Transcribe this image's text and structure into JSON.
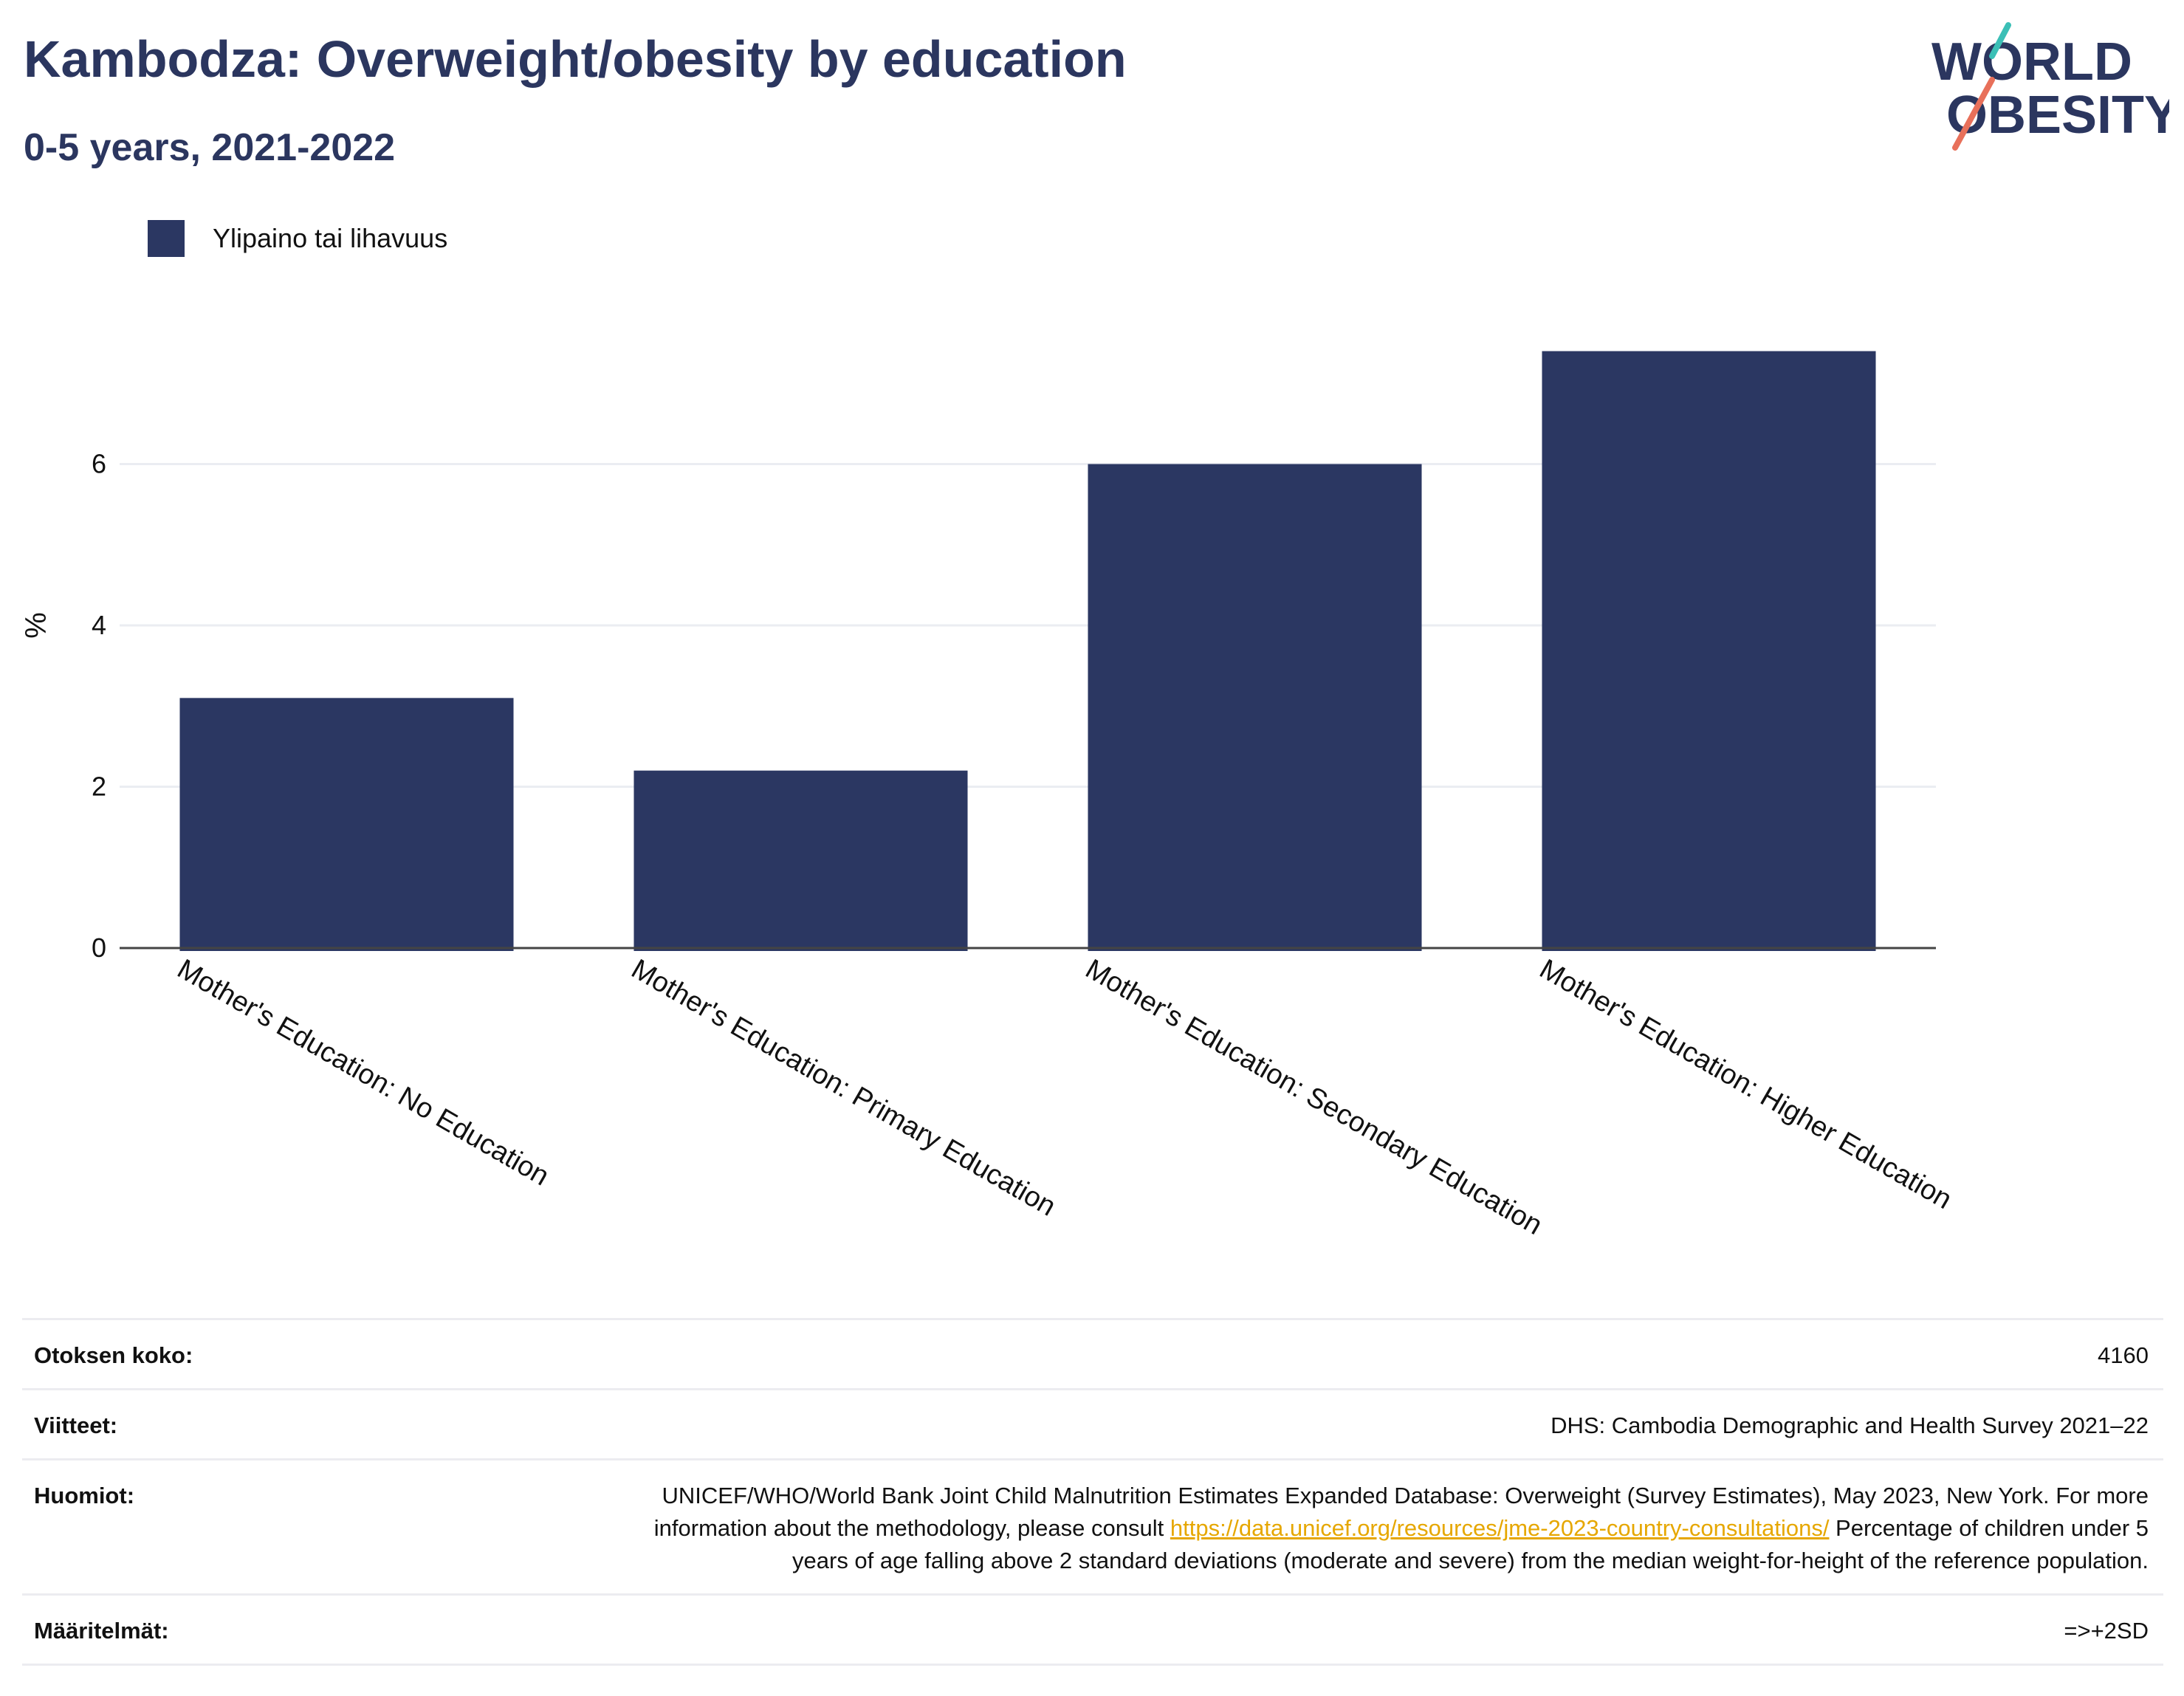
{
  "header": {
    "title": "Kambodza: Overweight/obesity by education",
    "subtitle": "0-5 years, 2021-2022"
  },
  "logo": {
    "line1": "WORLD",
    "line2": "OBESITY",
    "accent_teal": "#3bbfb6",
    "accent_coral": "#e8705a",
    "text_color": "#2b365f"
  },
  "legend": {
    "label": "Ylipaino tai lihavuus",
    "color": "#2b3762"
  },
  "chart_data": {
    "type": "bar",
    "categories": [
      "Mother's Education: No Education",
      "Mother's Education: Primary Education",
      "Mother's Education: Secondary Education",
      "Mother's Education: Higher Education"
    ],
    "series": [
      {
        "name": "Ylipaino tai lihavuus",
        "values": [
          3.1,
          2.2,
          6.0,
          7.4
        ],
        "color": "#2b3762"
      }
    ],
    "ylabel": "%",
    "xlabel": "",
    "ylim": [
      0,
      8
    ],
    "yticks": [
      0,
      2,
      4,
      6
    ],
    "grid": true,
    "legend_position": "top-left"
  },
  "meta": [
    {
      "label": "Otoksen koko:",
      "value": "4160"
    },
    {
      "label": "Viitteet:",
      "value": "DHS: Cambodia Demographic and Health Survey 2021–22"
    },
    {
      "label": "Huomiot:",
      "value_before": "UNICEF/WHO/World Bank Joint Child Malnutrition Estimates Expanded Database: Overweight (Survey Estimates), May 2023, New York. For more information about the methodology, please consult ",
      "link": "https://data.unicef.org/resources/jme-2023-country-consultations/",
      "value_after": " Percentage of children under 5 years of age falling above 2 standard deviations (moderate and severe) from the median weight-for-height of the reference population."
    },
    {
      "label": "Määritelmät:",
      "value": "=>+2SD"
    }
  ]
}
